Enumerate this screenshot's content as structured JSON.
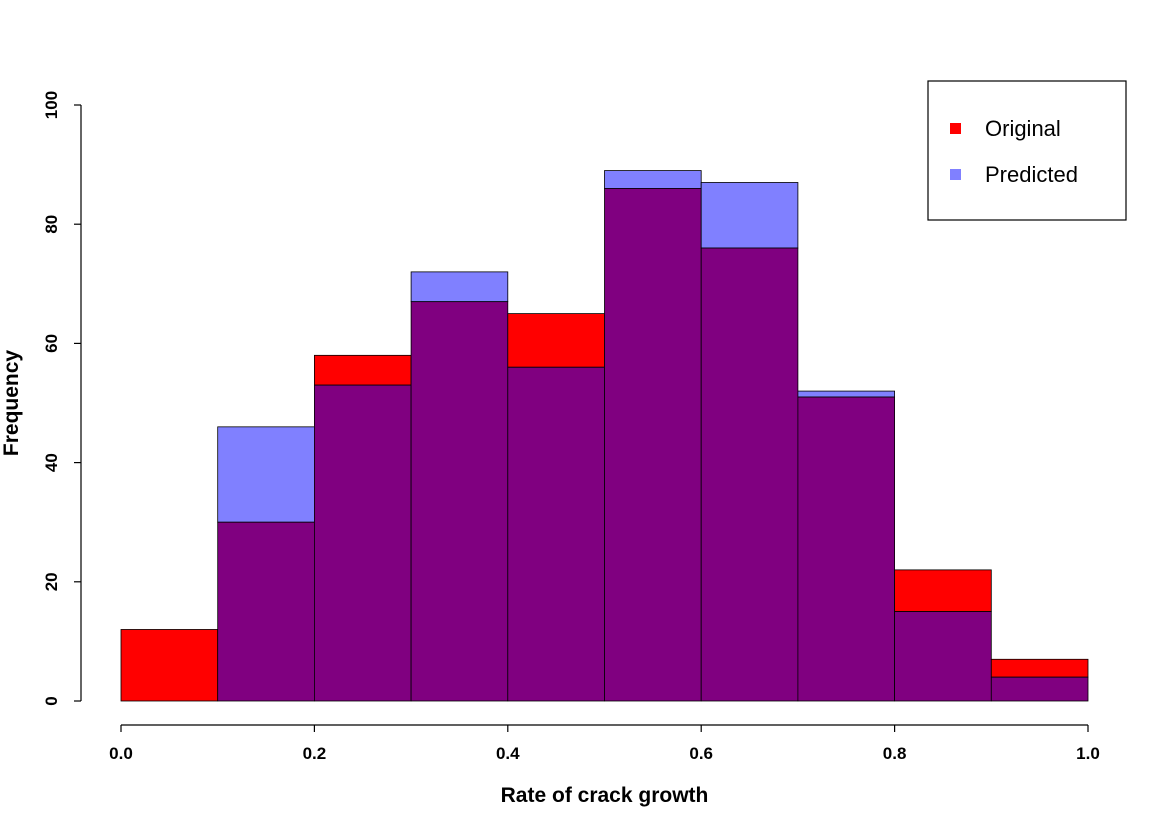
{
  "chart_data": {
    "type": "bar",
    "title": "",
    "xlabel": "Rate of crack growth",
    "ylabel": "Frequency",
    "xlim": [
      0.0,
      1.0
    ],
    "ylim": [
      0,
      100
    ],
    "x_ticks": [
      "0.0",
      "0.2",
      "0.4",
      "0.6",
      "0.8",
      "1.0"
    ],
    "y_ticks": [
      "0",
      "20",
      "40",
      "60",
      "80",
      "100"
    ],
    "bin_edges": [
      0.0,
      0.1,
      0.2,
      0.3,
      0.4,
      0.5,
      0.6,
      0.7,
      0.8,
      0.9,
      1.0
    ],
    "overlap_color": "#800080",
    "grid": false,
    "legend_position": "top-right",
    "series": [
      {
        "name": "Original",
        "color": "#ff0000",
        "values": [
          12,
          30,
          58,
          67,
          65,
          86,
          76,
          51,
          22,
          7
        ]
      },
      {
        "name": "Predicted",
        "color": "#8080ff",
        "values": [
          0,
          46,
          53,
          72,
          56,
          89,
          87,
          52,
          15,
          4
        ]
      }
    ]
  }
}
